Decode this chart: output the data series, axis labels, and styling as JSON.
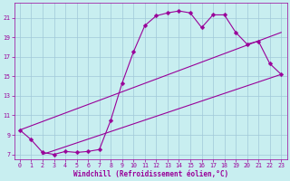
{
  "xlabel": "Windchill (Refroidissement éolien,°C)",
  "bg_color": "#c8eef0",
  "grid_color": "#a0c8d8",
  "line_color": "#990099",
  "xlim": [
    -0.5,
    23.5
  ],
  "ylim": [
    6.5,
    22.5
  ],
  "xticks": [
    0,
    1,
    2,
    3,
    4,
    5,
    6,
    7,
    8,
    9,
    10,
    11,
    12,
    13,
    14,
    15,
    16,
    17,
    18,
    19,
    20,
    21,
    22,
    23
  ],
  "yticks": [
    7,
    9,
    11,
    13,
    15,
    17,
    19,
    21
  ],
  "curve_x": [
    0,
    1,
    2,
    3,
    4,
    5,
    6,
    7,
    8,
    9,
    10,
    11,
    12,
    13,
    14,
    15,
    16,
    17,
    18,
    19,
    20,
    21,
    22,
    23
  ],
  "curve_y": [
    9.5,
    8.5,
    7.2,
    7.0,
    7.3,
    7.2,
    7.3,
    7.5,
    10.5,
    14.3,
    17.5,
    20.2,
    21.2,
    21.5,
    21.7,
    21.5,
    20.0,
    21.3,
    21.3,
    19.5,
    18.3,
    18.6,
    16.3,
    15.2
  ],
  "line1_x": [
    0,
    23
  ],
  "line1_y": [
    9.5,
    19.5
  ],
  "line2_x": [
    2,
    23
  ],
  "line2_y": [
    7.0,
    15.2
  ],
  "marker_size": 2.5,
  "xlabel_fontsize": 5.5,
  "tick_fontsize": 4.8
}
